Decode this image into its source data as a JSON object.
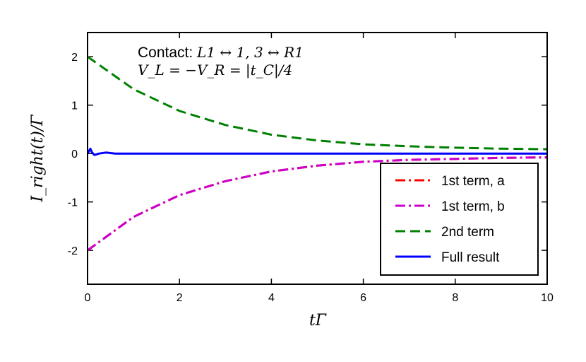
{
  "chart_data": {
    "type": "line",
    "xlabel": "tΓ",
    "ylabel": "I_right(t)/Γ",
    "xlim": [
      0,
      10
    ],
    "ylim": [
      -2.7,
      2.5
    ],
    "xticks": [
      0,
      2,
      4,
      6,
      8,
      10
    ],
    "xtick_labels": [
      "0",
      "2",
      "4",
      "6",
      "8",
      "10"
    ],
    "yticks": [
      -2,
      -1,
      0,
      1,
      2
    ],
    "ytick_labels": [
      "-2",
      "-1",
      "0",
      "1",
      "2"
    ],
    "annotations": [
      {
        "prefix": "Contact: ",
        "math": "L1 ↔ 1, 3 ↔ R1"
      },
      {
        "prefix": "",
        "math": "V_L = −V_R = |t_C|/4"
      }
    ],
    "legend_position": "bottom-right",
    "grid": false,
    "series": [
      {
        "name": "1st term, a",
        "color": "#ff0000",
        "style": "dash-dot",
        "x": [
          0,
          1,
          2,
          3,
          4,
          5,
          6,
          7,
          8,
          9,
          10
        ],
        "y": [
          -2.0,
          -1.31,
          -0.86,
          -0.57,
          -0.37,
          -0.25,
          -0.17,
          -0.13,
          -0.11,
          -0.09,
          -0.08
        ]
      },
      {
        "name": "1st term, b",
        "color": "#cc00cc",
        "style": "dash-dot",
        "x": [
          0,
          1,
          2,
          3,
          4,
          5,
          6,
          7,
          8,
          9,
          10
        ],
        "y": [
          -2.0,
          -1.31,
          -0.86,
          -0.57,
          -0.37,
          -0.25,
          -0.17,
          -0.13,
          -0.11,
          -0.09,
          -0.08
        ]
      },
      {
        "name": "2nd term",
        "color": "#008000",
        "style": "dashed",
        "x": [
          0,
          1,
          2,
          3,
          4,
          5,
          6,
          7,
          8,
          9,
          10
        ],
        "y": [
          2.0,
          1.33,
          0.88,
          0.59,
          0.39,
          0.27,
          0.19,
          0.15,
          0.12,
          0.1,
          0.09
        ]
      },
      {
        "name": "Full result",
        "color": "#0000ff",
        "style": "solid",
        "x": [
          0,
          0.03,
          0.06,
          0.1,
          0.15,
          0.25,
          0.4,
          0.6,
          1,
          2,
          4,
          6,
          8,
          10
        ],
        "y": [
          0,
          0.05,
          0.1,
          0.02,
          -0.03,
          0.0,
          0.02,
          0.0,
          0.0,
          0.0,
          0.0,
          0.0,
          0.0,
          0.0
        ]
      }
    ]
  }
}
